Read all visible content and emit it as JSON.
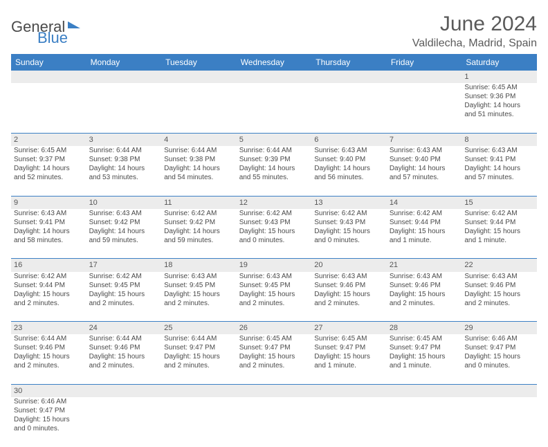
{
  "brand": {
    "part1": "General",
    "part2": "Blue"
  },
  "title": "June 2024",
  "location": "Valdilecha, Madrid, Spain",
  "colors": {
    "header_bg": "#3b7fc4",
    "daynum_bg": "#ececec",
    "text": "#4a4a4a",
    "border": "#3b7fc4"
  },
  "weekdays": [
    "Sunday",
    "Monday",
    "Tuesday",
    "Wednesday",
    "Thursday",
    "Friday",
    "Saturday"
  ],
  "weeks": [
    {
      "days": [
        {
          "n": "",
          "sunrise": "",
          "sunset": "",
          "day1": "",
          "day2": ""
        },
        {
          "n": "",
          "sunrise": "",
          "sunset": "",
          "day1": "",
          "day2": ""
        },
        {
          "n": "",
          "sunrise": "",
          "sunset": "",
          "day1": "",
          "day2": ""
        },
        {
          "n": "",
          "sunrise": "",
          "sunset": "",
          "day1": "",
          "day2": ""
        },
        {
          "n": "",
          "sunrise": "",
          "sunset": "",
          "day1": "",
          "day2": ""
        },
        {
          "n": "",
          "sunrise": "",
          "sunset": "",
          "day1": "",
          "day2": ""
        },
        {
          "n": "1",
          "sunrise": "Sunrise: 6:45 AM",
          "sunset": "Sunset: 9:36 PM",
          "day1": "Daylight: 14 hours",
          "day2": "and 51 minutes."
        }
      ]
    },
    {
      "days": [
        {
          "n": "2",
          "sunrise": "Sunrise: 6:45 AM",
          "sunset": "Sunset: 9:37 PM",
          "day1": "Daylight: 14 hours",
          "day2": "and 52 minutes."
        },
        {
          "n": "3",
          "sunrise": "Sunrise: 6:44 AM",
          "sunset": "Sunset: 9:38 PM",
          "day1": "Daylight: 14 hours",
          "day2": "and 53 minutes."
        },
        {
          "n": "4",
          "sunrise": "Sunrise: 6:44 AM",
          "sunset": "Sunset: 9:38 PM",
          "day1": "Daylight: 14 hours",
          "day2": "and 54 minutes."
        },
        {
          "n": "5",
          "sunrise": "Sunrise: 6:44 AM",
          "sunset": "Sunset: 9:39 PM",
          "day1": "Daylight: 14 hours",
          "day2": "and 55 minutes."
        },
        {
          "n": "6",
          "sunrise": "Sunrise: 6:43 AM",
          "sunset": "Sunset: 9:40 PM",
          "day1": "Daylight: 14 hours",
          "day2": "and 56 minutes."
        },
        {
          "n": "7",
          "sunrise": "Sunrise: 6:43 AM",
          "sunset": "Sunset: 9:40 PM",
          "day1": "Daylight: 14 hours",
          "day2": "and 57 minutes."
        },
        {
          "n": "8",
          "sunrise": "Sunrise: 6:43 AM",
          "sunset": "Sunset: 9:41 PM",
          "day1": "Daylight: 14 hours",
          "day2": "and 57 minutes."
        }
      ]
    },
    {
      "days": [
        {
          "n": "9",
          "sunrise": "Sunrise: 6:43 AM",
          "sunset": "Sunset: 9:41 PM",
          "day1": "Daylight: 14 hours",
          "day2": "and 58 minutes."
        },
        {
          "n": "10",
          "sunrise": "Sunrise: 6:43 AM",
          "sunset": "Sunset: 9:42 PM",
          "day1": "Daylight: 14 hours",
          "day2": "and 59 minutes."
        },
        {
          "n": "11",
          "sunrise": "Sunrise: 6:42 AM",
          "sunset": "Sunset: 9:42 PM",
          "day1": "Daylight: 14 hours",
          "day2": "and 59 minutes."
        },
        {
          "n": "12",
          "sunrise": "Sunrise: 6:42 AM",
          "sunset": "Sunset: 9:43 PM",
          "day1": "Daylight: 15 hours",
          "day2": "and 0 minutes."
        },
        {
          "n": "13",
          "sunrise": "Sunrise: 6:42 AM",
          "sunset": "Sunset: 9:43 PM",
          "day1": "Daylight: 15 hours",
          "day2": "and 0 minutes."
        },
        {
          "n": "14",
          "sunrise": "Sunrise: 6:42 AM",
          "sunset": "Sunset: 9:44 PM",
          "day1": "Daylight: 15 hours",
          "day2": "and 1 minute."
        },
        {
          "n": "15",
          "sunrise": "Sunrise: 6:42 AM",
          "sunset": "Sunset: 9:44 PM",
          "day1": "Daylight: 15 hours",
          "day2": "and 1 minute."
        }
      ]
    },
    {
      "days": [
        {
          "n": "16",
          "sunrise": "Sunrise: 6:42 AM",
          "sunset": "Sunset: 9:44 PM",
          "day1": "Daylight: 15 hours",
          "day2": "and 2 minutes."
        },
        {
          "n": "17",
          "sunrise": "Sunrise: 6:42 AM",
          "sunset": "Sunset: 9:45 PM",
          "day1": "Daylight: 15 hours",
          "day2": "and 2 minutes."
        },
        {
          "n": "18",
          "sunrise": "Sunrise: 6:43 AM",
          "sunset": "Sunset: 9:45 PM",
          "day1": "Daylight: 15 hours",
          "day2": "and 2 minutes."
        },
        {
          "n": "19",
          "sunrise": "Sunrise: 6:43 AM",
          "sunset": "Sunset: 9:45 PM",
          "day1": "Daylight: 15 hours",
          "day2": "and 2 minutes."
        },
        {
          "n": "20",
          "sunrise": "Sunrise: 6:43 AM",
          "sunset": "Sunset: 9:46 PM",
          "day1": "Daylight: 15 hours",
          "day2": "and 2 minutes."
        },
        {
          "n": "21",
          "sunrise": "Sunrise: 6:43 AM",
          "sunset": "Sunset: 9:46 PM",
          "day1": "Daylight: 15 hours",
          "day2": "and 2 minutes."
        },
        {
          "n": "22",
          "sunrise": "Sunrise: 6:43 AM",
          "sunset": "Sunset: 9:46 PM",
          "day1": "Daylight: 15 hours",
          "day2": "and 2 minutes."
        }
      ]
    },
    {
      "days": [
        {
          "n": "23",
          "sunrise": "Sunrise: 6:44 AM",
          "sunset": "Sunset: 9:46 PM",
          "day1": "Daylight: 15 hours",
          "day2": "and 2 minutes."
        },
        {
          "n": "24",
          "sunrise": "Sunrise: 6:44 AM",
          "sunset": "Sunset: 9:46 PM",
          "day1": "Daylight: 15 hours",
          "day2": "and 2 minutes."
        },
        {
          "n": "25",
          "sunrise": "Sunrise: 6:44 AM",
          "sunset": "Sunset: 9:47 PM",
          "day1": "Daylight: 15 hours",
          "day2": "and 2 minutes."
        },
        {
          "n": "26",
          "sunrise": "Sunrise: 6:45 AM",
          "sunset": "Sunset: 9:47 PM",
          "day1": "Daylight: 15 hours",
          "day2": "and 2 minutes."
        },
        {
          "n": "27",
          "sunrise": "Sunrise: 6:45 AM",
          "sunset": "Sunset: 9:47 PM",
          "day1": "Daylight: 15 hours",
          "day2": "and 1 minute."
        },
        {
          "n": "28",
          "sunrise": "Sunrise: 6:45 AM",
          "sunset": "Sunset: 9:47 PM",
          "day1": "Daylight: 15 hours",
          "day2": "and 1 minute."
        },
        {
          "n": "29",
          "sunrise": "Sunrise: 6:46 AM",
          "sunset": "Sunset: 9:47 PM",
          "day1": "Daylight: 15 hours",
          "day2": "and 0 minutes."
        }
      ]
    },
    {
      "days": [
        {
          "n": "30",
          "sunrise": "Sunrise: 6:46 AM",
          "sunset": "Sunset: 9:47 PM",
          "day1": "Daylight: 15 hours",
          "day2": "and 0 minutes."
        },
        {
          "n": "",
          "sunrise": "",
          "sunset": "",
          "day1": "",
          "day2": ""
        },
        {
          "n": "",
          "sunrise": "",
          "sunset": "",
          "day1": "",
          "day2": ""
        },
        {
          "n": "",
          "sunrise": "",
          "sunset": "",
          "day1": "",
          "day2": ""
        },
        {
          "n": "",
          "sunrise": "",
          "sunset": "",
          "day1": "",
          "day2": ""
        },
        {
          "n": "",
          "sunrise": "",
          "sunset": "",
          "day1": "",
          "day2": ""
        },
        {
          "n": "",
          "sunrise": "",
          "sunset": "",
          "day1": "",
          "day2": ""
        }
      ]
    }
  ]
}
